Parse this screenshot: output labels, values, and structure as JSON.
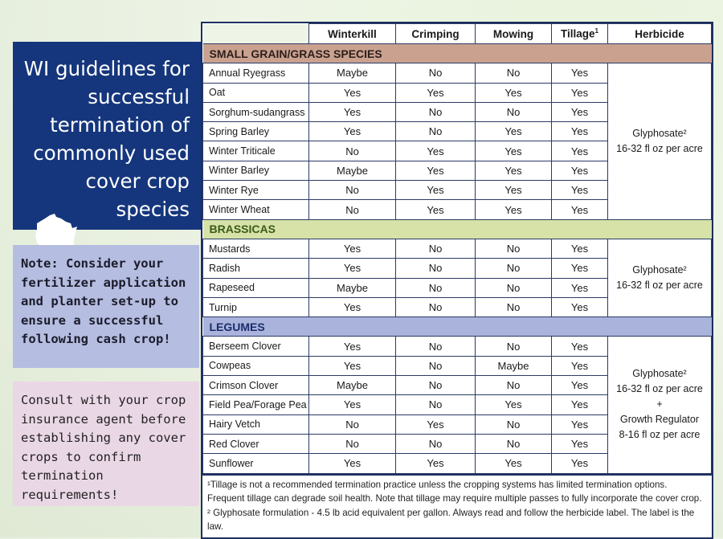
{
  "title": "WI guidelines for successful termination of commonly used cover crop species",
  "title_lines": [
    "WI guidelines for",
    "successful",
    "termination of",
    "commonly used",
    "cover crop",
    "species"
  ],
  "notes": {
    "note1": "Note: Consider your fertilizer application and planter set-up to ensure a successful following cash crop!",
    "note2": "Consult with your crop insurance agent before establishing any cover crops to confirm termination requirements!"
  },
  "table": {
    "headers": [
      "Winterkill",
      "Crimping",
      "Mowing",
      "Tillage",
      "Herbicide"
    ],
    "tillage_sup": "1",
    "sections": [
      {
        "name": "SMALL GRAIN/GRASS SPECIES",
        "herbicide": [
          "Glyphosate²",
          "16-32 fl oz per acre"
        ],
        "rows": [
          [
            "Annual Ryegrass",
            "Maybe",
            "No",
            "No",
            "Yes"
          ],
          [
            "Oat",
            "Yes",
            "Yes",
            "Yes",
            "Yes"
          ],
          [
            "Sorghum-sudangrass",
            "Yes",
            "No",
            "No",
            "Yes"
          ],
          [
            "Spring Barley",
            "Yes",
            "No",
            "Yes",
            "Yes"
          ],
          [
            "Winter Triticale",
            "No",
            "Yes",
            "Yes",
            "Yes"
          ],
          [
            "Winter Barley",
            "Maybe",
            "Yes",
            "Yes",
            "Yes"
          ],
          [
            "Winter Rye",
            "No",
            "Yes",
            "Yes",
            "Yes"
          ],
          [
            "Winter Wheat",
            "No",
            "Yes",
            "Yes",
            "Yes"
          ]
        ]
      },
      {
        "name": "BRASSICAS",
        "herbicide": [
          "Glyphosate²",
          "16-32 fl oz per acre"
        ],
        "rows": [
          [
            "Mustards",
            "Yes",
            "No",
            "No",
            "Yes"
          ],
          [
            "Radish",
            "Yes",
            "No",
            "No",
            "Yes"
          ],
          [
            "Rapeseed",
            "Maybe",
            "No",
            "No",
            "Yes"
          ],
          [
            "Turnip",
            "Yes",
            "No",
            "No",
            "Yes"
          ]
        ]
      },
      {
        "name": "LEGUMES",
        "herbicide": [
          "Glyphosate²",
          "16-32 fl oz per acre",
          "+",
          "Growth Regulator",
          "8-16 fl oz per acre"
        ],
        "rows": [
          [
            "Berseem Clover",
            "Yes",
            "No",
            "No",
            "Yes"
          ],
          [
            "Cowpeas",
            "Yes",
            "No",
            "Maybe",
            "Yes"
          ],
          [
            "Crimson Clover",
            "Maybe",
            "No",
            "No",
            "Yes"
          ],
          [
            "Field Pea/Forage Pea",
            "Yes",
            "No",
            "Yes",
            "Yes"
          ],
          [
            "Hairy Vetch",
            "No",
            "Yes",
            "No",
            "Yes"
          ],
          [
            "Red Clover",
            "No",
            "No",
            "No",
            "Yes"
          ],
          [
            "Sunflower",
            "Yes",
            "Yes",
            "Yes",
            "Yes"
          ]
        ]
      }
    ],
    "footnotes": [
      "¹Tillage is not a recommended termination practice unless the cropping systems has limited termination options. Frequent tillage can degrade soil health. Note that tillage may require multiple passes to fully incorporate the cover crop.",
      "² Glyphosate formulation - 4.5 lb acid equivalent per gallon.  Always read and follow the herbicide label. The label is the law."
    ]
  },
  "colors": {
    "title_bg": "#15367c",
    "small_grain": "#caa18f",
    "brassicas": "#d6e2a7",
    "legumes": "#a9b3dc",
    "note1_bg": "#b5bde0",
    "note2_bg": "#ead7e6"
  }
}
